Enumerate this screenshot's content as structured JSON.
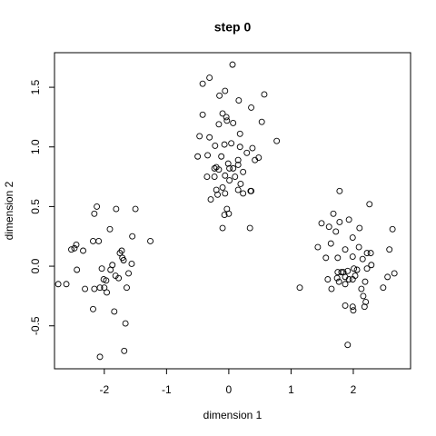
{
  "chart_data": {
    "type": "scatter",
    "title": "step 0",
    "x_label": "dimension 1",
    "y_label": "dimension 2",
    "xlim": [
      -2.8,
      2.92
    ],
    "ylim": [
      -0.86,
      1.79
    ],
    "xticks": [
      -2,
      -1,
      0,
      1,
      2
    ],
    "yticks": [
      -0.5,
      {
        "value": 0,
        "label": "0.0"
      },
      0.5,
      {
        "value": 1,
        "label": "1.0"
      },
      1.5
    ],
    "grid": false,
    "color": "#000000",
    "x": [
      -2.12,
      -1.81,
      -1.5,
      -2.45,
      -2.48,
      -2.18,
      -2.09,
      -2.16,
      -1.91,
      -1.26,
      -1.55,
      -2.53,
      -2.34,
      -1.72,
      -1.75,
      -1.71,
      -1.69,
      -1.87,
      -1.56,
      -1.9,
      -2.04,
      -2.44,
      -2.61,
      -2.31,
      -2.16,
      -2.01,
      -1.97,
      -2.0,
      -1.96,
      -1.77,
      -1.61,
      -1.64,
      -2.07,
      -2.18,
      -1.84,
      -1.66,
      -1.68,
      -2.07,
      -2.74,
      -1.82,
      0.06,
      -0.31,
      -0.42,
      -0.06,
      -0.15,
      0.16,
      0.57,
      0.36,
      -0.42,
      -0.1,
      -0.04,
      -0.03,
      -0.16,
      0.07,
      0.53,
      0.18,
      0.77,
      -0.47,
      -0.31,
      -0.22,
      -0.07,
      0.04,
      0.18,
      0.38,
      -0.12,
      0.29,
      0.48,
      -0.5,
      -0.34,
      -0.01,
      0.15,
      -0.2,
      -0.23,
      -0.16,
      0.01,
      0.07,
      0.15,
      0.23,
      0.42,
      0.01,
      0.1,
      -0.06,
      0.19,
      0.36,
      -0.2,
      -0.1,
      0.15,
      0.35,
      -0.29,
      -0.18,
      -0.06,
      0.23,
      -0.03,
      0.0,
      -0.07,
      -0.1,
      0.34,
      -0.23,
      -0.35,
      1.78,
      2.26,
      1.68,
      1.49,
      1.61,
      1.78,
      1.93,
      2.1,
      1.72,
      1.99,
      2.63,
      1.64,
      1.43,
      1.87,
      2.09,
      2.22,
      2.28,
      1.99,
      1.56,
      1.75,
      2.15,
      2.58,
      2.29,
      2.01,
      2.22,
      1.75,
      1.84,
      1.81,
      1.91,
      2.06,
      1.87,
      2.03,
      1.59,
      1.74,
      1.93,
      1.99,
      2.19,
      2.66,
      2.55,
      2.13,
      2.48,
      1.65,
      1.87,
      2.16,
      2.2,
      2.18,
      1.87,
      1.99,
      2.0,
      1.14,
      1.91,
      1.77
    ],
    "y": [
      0.5,
      0.48,
      0.48,
      0.18,
      0.15,
      0.21,
      0.21,
      0.44,
      0.31,
      0.21,
      0.25,
      0.14,
      0.13,
      0.13,
      0.11,
      0.07,
      0.05,
      0.01,
      0.02,
      -0.03,
      -0.02,
      -0.03,
      -0.15,
      -0.19,
      -0.19,
      -0.11,
      -0.12,
      -0.18,
      -0.22,
      -0.1,
      -0.06,
      -0.18,
      -0.18,
      -0.36,
      -0.38,
      -0.48,
      -0.71,
      -0.76,
      -0.15,
      -0.08,
      1.69,
      1.58,
      1.53,
      1.47,
      1.43,
      1.39,
      1.44,
      1.33,
      1.27,
      1.28,
      1.25,
      1.22,
      1.19,
      1.2,
      1.21,
      1.11,
      1.05,
      1.09,
      1.08,
      1.01,
      1.02,
      1.03,
      1.0,
      0.99,
      0.92,
      0.95,
      0.91,
      0.92,
      0.93,
      0.86,
      0.85,
      0.83,
      0.82,
      0.81,
      0.82,
      0.82,
      0.89,
      0.79,
      0.89,
      0.72,
      0.75,
      0.76,
      0.69,
      0.63,
      0.64,
      0.66,
      0.64,
      0.63,
      0.56,
      0.6,
      0.61,
      0.61,
      0.48,
      0.44,
      0.43,
      0.32,
      0.32,
      0.75,
      0.75,
      0.63,
      0.52,
      0.44,
      0.36,
      0.33,
      0.37,
      0.39,
      0.32,
      0.29,
      0.24,
      0.31,
      0.19,
      0.16,
      0.14,
      0.16,
      0.11,
      0.11,
      0.08,
      0.07,
      0.07,
      0.06,
      0.14,
      0.01,
      -0.02,
      -0.02,
      -0.05,
      -0.05,
      -0.05,
      -0.04,
      -0.03,
      -0.09,
      -0.08,
      -0.11,
      -0.1,
      -0.11,
      -0.11,
      -0.13,
      -0.06,
      -0.09,
      -0.19,
      -0.18,
      -0.19,
      -0.15,
      -0.25,
      -0.3,
      -0.34,
      -0.33,
      -0.34,
      -0.37,
      -0.18,
      -0.66,
      -0.13
    ]
  }
}
